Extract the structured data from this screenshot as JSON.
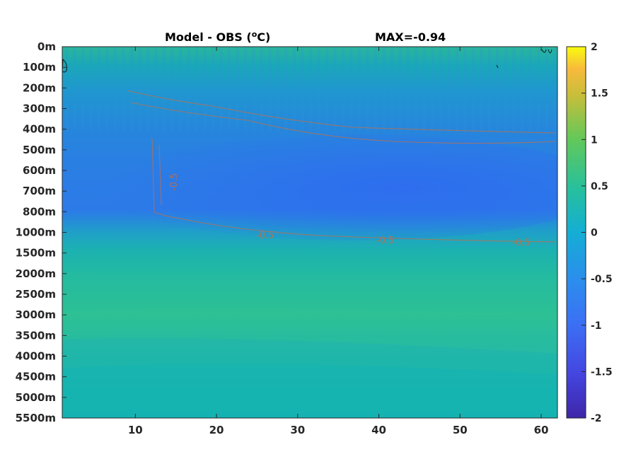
{
  "title": {
    "left": "Model - OBS (",
    "unit_super": "o",
    "unit_rest": "C)",
    "right": "MAX=-0.94"
  },
  "colors": {
    "zero": "#14b3a6",
    "neg_half": "#2d8cd8",
    "neg_full": "#2e6fee",
    "pos_half": "#3cc488",
    "contour": "#c0704a",
    "frame": "#262626"
  },
  "chart_data": {
    "type": "heatmap",
    "title": "Model - OBS (oC)    MAX=-0.94",
    "xlabel": "",
    "ylabel": "",
    "x_ticks": [
      "10",
      "20",
      "30",
      "40",
      "50",
      "60"
    ],
    "x_tick_values": [
      10,
      20,
      30,
      40,
      50,
      60
    ],
    "xlim": [
      1,
      62
    ],
    "y_ticks": [
      "0m",
      "100m",
      "200m",
      "300m",
      "400m",
      "500m",
      "600m",
      "700m",
      "800m",
      "1000m",
      "1500m",
      "2000m",
      "2500m",
      "3000m",
      "3500m",
      "4000m",
      "4500m",
      "5000m",
      "5500m"
    ],
    "colorbar": {
      "ticks": [
        "2",
        "1.5",
        "1",
        "0.5",
        "0",
        "-0.5",
        "-1",
        "-1.5",
        "-2"
      ],
      "tick_values": [
        2,
        1.5,
        1,
        0.5,
        0,
        -0.5,
        -1,
        -1.5,
        -2
      ],
      "range": [
        -2,
        2
      ],
      "colormap": "parula"
    },
    "contour_labels": [
      "-0.5",
      "-0.5",
      "-0.5",
      "-0.5"
    ],
    "max_value": -0.94
  }
}
